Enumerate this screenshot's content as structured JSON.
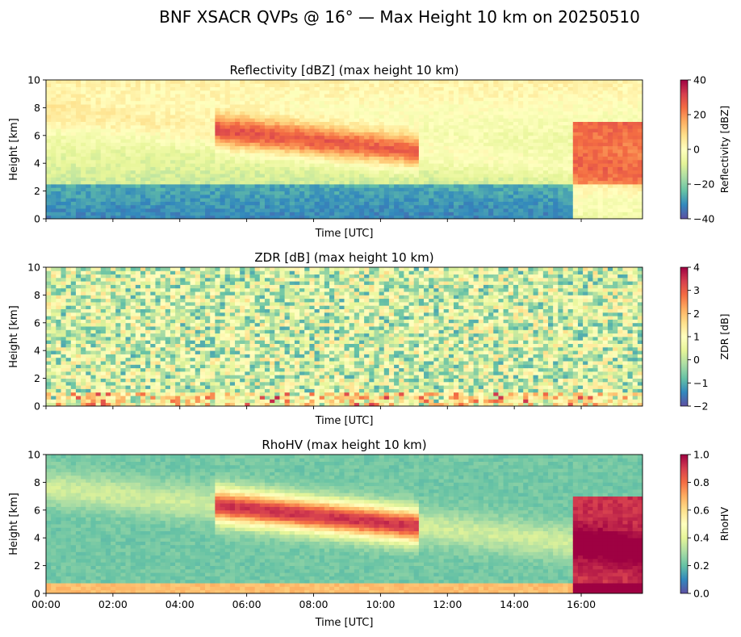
{
  "suptitle": "BNF XSACR QVPs @ 16° — Max Height 10 km on 20250510",
  "chart_data": [
    {
      "type": "heatmap",
      "title": "Reflectivity [dBZ] (max height 10 km)",
      "xlabel": "Time [UTC]",
      "ylabel": "Height [km]",
      "xlim": [
        "00:00",
        "17:50"
      ],
      "ylim": [
        0,
        10
      ],
      "yticks": [
        "0",
        "2",
        "4",
        "6",
        "8",
        "10"
      ],
      "xticks": [
        "00:00",
        "02:00",
        "04:00",
        "06:00",
        "08:00",
        "10:00",
        "12:00",
        "14:00",
        "16:00"
      ],
      "show_xticklabels": false,
      "colormap": "Spectral_r-like",
      "colorbar": {
        "label": "Reflectivity [dBZ]",
        "min": -40,
        "max": 40,
        "ticks": [
          "−40",
          "−20",
          "0",
          "20",
          "40"
        ]
      }
    },
    {
      "type": "heatmap",
      "title": "ZDR [dB] (max height 10 km)",
      "xlabel": "Time [UTC]",
      "ylabel": "Height [km]",
      "xlim": [
        "00:00",
        "17:50"
      ],
      "ylim": [
        0,
        10
      ],
      "yticks": [
        "0",
        "2",
        "4",
        "6",
        "8",
        "10"
      ],
      "xticks": [
        "00:00",
        "02:00",
        "04:00",
        "06:00",
        "08:00",
        "10:00",
        "12:00",
        "14:00",
        "16:00"
      ],
      "show_xticklabels": false,
      "colormap": "Spectral_r-like",
      "colorbar": {
        "label": "ZDR [dB]",
        "min": -2,
        "max": 4,
        "ticks": [
          "−2",
          "−1",
          "0",
          "1",
          "2",
          "3",
          "4"
        ]
      }
    },
    {
      "type": "heatmap",
      "title": "RhoHV (max height 10 km)",
      "xlabel": "Time [UTC]",
      "ylabel": "Height [km]",
      "xlim": [
        "00:00",
        "17:50"
      ],
      "ylim": [
        0,
        10
      ],
      "yticks": [
        "0",
        "2",
        "4",
        "6",
        "8",
        "10"
      ],
      "xticks": [
        "00:00",
        "02:00",
        "04:00",
        "06:00",
        "08:00",
        "10:00",
        "12:00",
        "14:00",
        "16:00"
      ],
      "show_xticklabels": true,
      "colormap": "Spectral_r-like",
      "colorbar": {
        "label": "RhoHV",
        "min": 0,
        "max": 1,
        "ticks": [
          "0.0",
          "0.2",
          "0.4",
          "0.6",
          "0.8",
          "1.0"
        ]
      }
    }
  ]
}
